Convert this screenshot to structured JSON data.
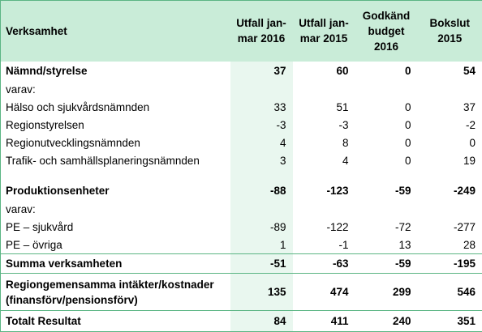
{
  "header": {
    "col0": "Verksamhet",
    "col1": "Utfall jan-mar 2016",
    "col2": "Utfall jan-mar 2015",
    "col3": "Godkänd budget 2016",
    "col4": "Bokslut 2015"
  },
  "rows": [
    {
      "label": "Nämnd/styrelse",
      "v1": "37",
      "v2": "60",
      "v3": "0",
      "v4": "54"
    },
    {
      "label": "varav:",
      "v1": "",
      "v2": "",
      "v3": "",
      "v4": ""
    },
    {
      "label": "Hälso och sjukvårdsnämnden",
      "v1": "33",
      "v2": "51",
      "v3": "0",
      "v4": "37"
    },
    {
      "label": "Regionstyrelsen",
      "v1": "-3",
      "v2": "-3",
      "v3": "0",
      "v4": "-2"
    },
    {
      "label": "Regionutvecklingsnämnden",
      "v1": "4",
      "v2": "8",
      "v3": "0",
      "v4": "0"
    },
    {
      "label": "Trafik- och samhällsplaneringsnämnden",
      "v1": "3",
      "v2": "4",
      "v3": "0",
      "v4": "19"
    },
    {
      "label": "Produktionsenheter",
      "v1": "-88",
      "v2": "-123",
      "v3": "-59",
      "v4": "-249"
    },
    {
      "label": "varav:",
      "v1": "",
      "v2": "",
      "v3": "",
      "v4": ""
    },
    {
      "label": "PE – sjukvård",
      "v1": "-89",
      "v2": "-122",
      "v3": "-72",
      "v4": "-277"
    },
    {
      "label": "PE – övriga",
      "v1": "1",
      "v2": "-1",
      "v3": "13",
      "v4": "28"
    },
    {
      "label": "Summa verksamheten",
      "v1": "-51",
      "v2": "-63",
      "v3": "-59",
      "v4": "-195"
    },
    {
      "label": "Regiongemensamma intäkter/kostnader (finansförv/pensionsförv)",
      "v1": "135",
      "v2": "474",
      "v3": "299",
      "v4": "546"
    },
    {
      "label": "Totalt Resultat",
      "v1": "84",
      "v2": "411",
      "v3": "240",
      "v4": "351"
    }
  ]
}
